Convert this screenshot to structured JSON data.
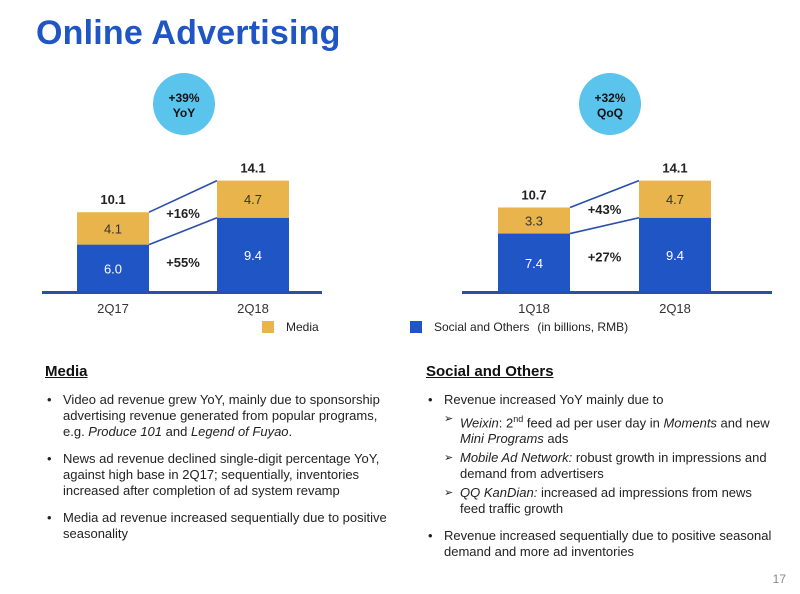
{
  "title": "Online Advertising",
  "page_number": "17",
  "colors": {
    "media": "#e9b44c",
    "social": "#1f55c4",
    "badge": "#5bc4ec",
    "line": "#2a4fa8"
  },
  "legend": {
    "media": "Media",
    "social": "Social and Others",
    "units": "(in billions, RMB)"
  },
  "chart_data": [
    {
      "type": "bar",
      "stacked": true,
      "categories": [
        "2Q17",
        "2Q18"
      ],
      "series": [
        {
          "name": "Social and Others",
          "values": [
            6.0,
            9.4
          ]
        },
        {
          "name": "Media",
          "values": [
            4.1,
            4.7
          ]
        }
      ],
      "totals": [
        10.1,
        14.1
      ],
      "growth": {
        "media": "+16%",
        "social": "+55%"
      },
      "badge": [
        "+39%",
        "YoY"
      ]
    },
    {
      "type": "bar",
      "stacked": true,
      "categories": [
        "1Q18",
        "2Q18"
      ],
      "series": [
        {
          "name": "Social and Others",
          "values": [
            7.4,
            9.4
          ]
        },
        {
          "name": "Media",
          "values": [
            3.3,
            4.7
          ]
        }
      ],
      "totals": [
        10.7,
        14.1
      ],
      "growth": {
        "media": "+43%",
        "social": "+27%"
      },
      "badge": [
        "+32%",
        "QoQ"
      ]
    }
  ],
  "media_section": {
    "heading": "Media",
    "b1": {
      "t1": "Video ad revenue grew YoY, mainly due to sponsorship advertising revenue generated from popular programs, e.g. ",
      "e1": "Produce 101",
      "t2": " and ",
      "e2": "Legend of Fuyao",
      "t3": "."
    },
    "b2": "News ad revenue declined single-digit percentage YoY, against high base in 2Q17; sequentially, inventories increased after completion of ad system revamp",
    "b3": "Media ad revenue increased sequentially due to positive seasonality"
  },
  "social_section": {
    "heading": "Social and Others",
    "b1": "Revenue increased YoY mainly due to",
    "s1": {
      "label": "Weixin",
      "t1": ": 2",
      "sup": "nd",
      "t2": " feed ad per user day in ",
      "e1": "Moments",
      "t3": " and new ",
      "e2": "Mini Programs",
      "t4": " ads"
    },
    "s2": {
      "label": "Mobile Ad Network:",
      "text": " robust growth in impressions and demand from advertisers"
    },
    "s3": {
      "label": "QQ KanDian:",
      "text": " increased ad impressions from news feed traffic growth"
    },
    "b2": "Revenue increased sequentially due to positive seasonal demand and more ad inventories"
  }
}
